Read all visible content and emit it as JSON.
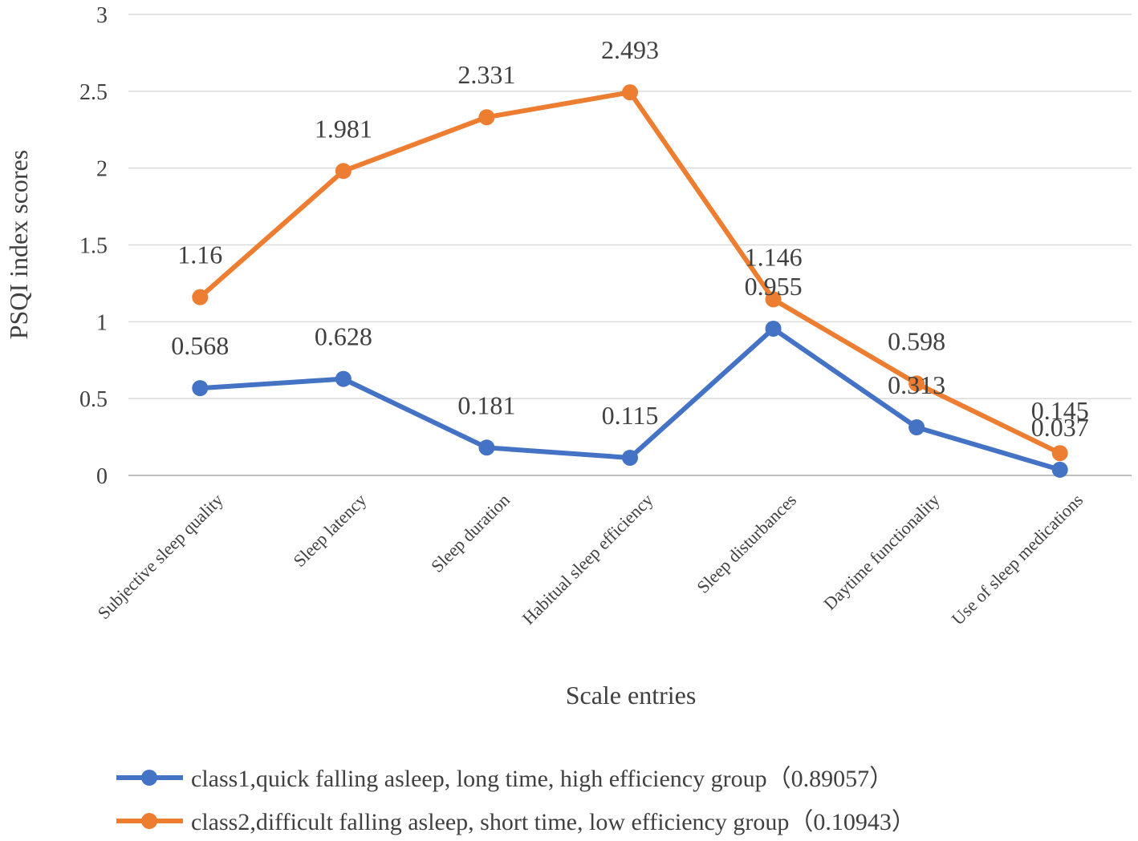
{
  "chart_data": {
    "type": "line",
    "title": "",
    "xlabel": "Scale entries",
    "ylabel": "PSQI index scores",
    "ylim": [
      0,
      3
    ],
    "yticks": [
      {
        "value": 0,
        "label": "0"
      },
      {
        "value": 0.5,
        "label": "0.5"
      },
      {
        "value": 1,
        "label": "1"
      },
      {
        "value": 1.5,
        "label": "1.5"
      },
      {
        "value": 2,
        "label": "2"
      },
      {
        "value": 2.5,
        "label": "2.5"
      },
      {
        "value": 3,
        "label": "3"
      }
    ],
    "grid": true,
    "legend_position": "bottom",
    "categories": [
      "Subjective sleep quality",
      "Sleep latency",
      "Sleep duration",
      "Habitual sleep efficiency",
      "Sleep disturbances",
      "Daytime functionality",
      "Use of sleep medications"
    ],
    "series": [
      {
        "name": "class1,quick falling asleep, long time, high efficiency group（0.89057）",
        "color": "#4472C4",
        "values": [
          0.568,
          0.628,
          0.181,
          0.115,
          0.955,
          0.313,
          0.037
        ],
        "labels": [
          "0.568",
          "0.628",
          "0.181",
          "0.115",
          "0.955",
          "0.313",
          "0.037"
        ]
      },
      {
        "name": "class2,difficult falling asleep, short time, low efficiency group（0.10943）",
        "color": "#ED7D31",
        "values": [
          1.16,
          1.981,
          2.331,
          2.493,
          1.146,
          0.598,
          0.145
        ],
        "labels": [
          "1.16",
          "1.981",
          "2.331",
          "2.493",
          "1.146",
          "0.598",
          "0.145"
        ]
      }
    ]
  }
}
